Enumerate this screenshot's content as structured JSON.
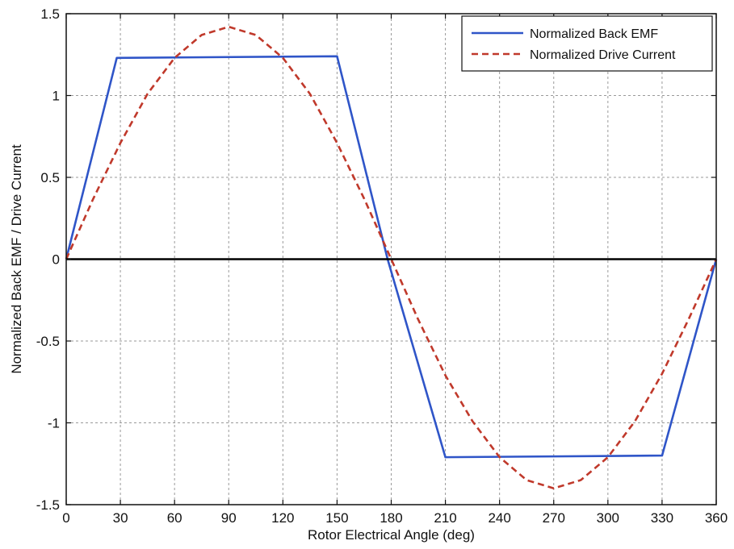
{
  "chart_data": {
    "type": "line",
    "title": "",
    "xlabel": "Rotor Electrical Angle (deg)",
    "ylabel": "Normalized Back EMF / Drive Current",
    "xlim": [
      0,
      360
    ],
    "ylim": [
      -1.5,
      1.5
    ],
    "xticks": [
      0,
      30,
      60,
      90,
      120,
      150,
      180,
      210,
      240,
      270,
      300,
      330,
      360
    ],
    "yticks": [
      -1.5,
      -1,
      -0.5,
      0,
      0.5,
      1,
      1.5
    ],
    "xtick_labels": [
      "0",
      "30",
      "60",
      "90",
      "120",
      "150",
      "180",
      "210",
      "240",
      "270",
      "300",
      "330",
      "360"
    ],
    "ytick_labels": [
      "-1.5",
      "-1",
      "-0.5",
      "0",
      "0.5",
      "1",
      "1.5"
    ],
    "grid": true,
    "legend_position": "top-right",
    "series": [
      {
        "name": "Normalized Back EMF",
        "color": "#2f55c8",
        "style": "solid",
        "x": [
          0,
          28,
          150,
          178,
          210,
          330,
          360
        ],
        "y": [
          0,
          1.23,
          1.24,
          0,
          -1.21,
          -1.2,
          0
        ]
      },
      {
        "name": "Normalized Drive Current",
        "color": "#c0392b",
        "style": "dashed",
        "x": [
          0,
          15,
          30,
          45,
          60,
          75,
          90,
          105,
          120,
          135,
          150,
          165,
          180,
          195,
          210,
          225,
          240,
          255,
          270,
          285,
          300,
          315,
          330,
          345,
          360
        ],
        "y": [
          0,
          0.37,
          0.71,
          1.01,
          1.23,
          1.37,
          1.42,
          1.37,
          1.23,
          1.01,
          0.71,
          0.37,
          0,
          -0.37,
          -0.71,
          -0.99,
          -1.21,
          -1.35,
          -1.4,
          -1.35,
          -1.21,
          -0.99,
          -0.7,
          -0.36,
          0
        ]
      },
      {
        "color": "#000000",
        "style": "solid",
        "x": [
          0,
          360
        ],
        "y": [
          0,
          0
        ]
      }
    ]
  }
}
